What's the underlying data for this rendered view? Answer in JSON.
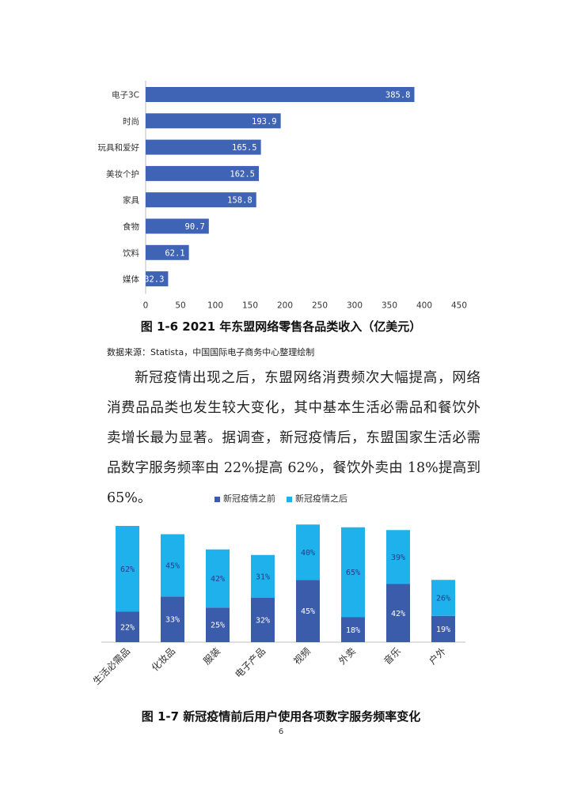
{
  "chart_data": [
    {
      "type": "bar",
      "orientation": "horizontal",
      "categories": [
        "电子3C",
        "时尚",
        "玩具和爱好",
        "美妆个护",
        "家具",
        "食物",
        "饮料",
        "媒体"
      ],
      "values": [
        385.8,
        193.9,
        165.5,
        162.5,
        158.8,
        90.7,
        62.1,
        32.3
      ],
      "value_labels": [
        "385.8",
        "193.9",
        "165.5",
        "162.5",
        "158.8",
        "90.7",
        "62.1",
        "32.3"
      ],
      "xlim": [
        0,
        450
      ],
      "xticks": [
        "0",
        "50",
        "100",
        "150",
        "200",
        "250",
        "300",
        "350",
        "400",
        "450"
      ],
      "xtick_values": [
        0,
        50,
        100,
        150,
        200,
        250,
        300,
        350,
        400,
        450
      ],
      "grid": false,
      "bar_color": "#3F63B5",
      "caption": "图 1-6  2021 年东盟网络零售各品类收入（亿美元）"
    },
    {
      "type": "bar",
      "stacked": true,
      "categories": [
        "生活必需品",
        "化妆品",
        "服装",
        "电子产品",
        "视频",
        "外卖",
        "音乐",
        "户外"
      ],
      "series": [
        {
          "name": "新冠疫情之前",
          "values": [
            22,
            33,
            25,
            32,
            45,
            18,
            42,
            19
          ],
          "labels": [
            "22%",
            "33%",
            "25%",
            "32%",
            "45%",
            "18%",
            "42%",
            "19%"
          ],
          "color": "#3A5CAB"
        },
        {
          "name": "新冠疫情之后",
          "values": [
            62,
            45,
            42,
            31,
            40,
            65,
            39,
            26
          ],
          "labels": [
            "62%",
            "45%",
            "42%",
            "31%",
            "40%",
            "65%",
            "39%",
            "26%"
          ],
          "color": "#1EB1EC"
        }
      ],
      "ylim": [
        0,
        88
      ],
      "legend": "top",
      "grid": false,
      "caption": "图 1-7  新冠疫情前后用户使用各项数字服务频率变化"
    }
  ],
  "source_note": "数据来源：Statista，中国国际电子商务中心整理绘制",
  "paragraph": "新冠疫情出现之后，东盟网络消费频次大幅提高，网络消费品品类也发生较大变化，其中基本生活必需品和餐饮外卖增长最为显著。据调查，新冠疫情后，东盟国家生活必需品数字服务频率由 22%提高 62%，餐饮外卖由 18%提高到 65%。",
  "page_number": "6"
}
